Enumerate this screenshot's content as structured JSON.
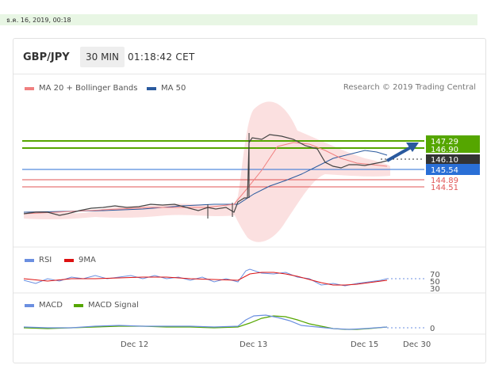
{
  "timestamp": "ธ.ค. 16, 2019, 00:18",
  "header": {
    "pair": "GBP/JPY",
    "timeframe": "30 MIN",
    "time": "01:18:42 CET"
  },
  "legend": {
    "ma20": "MA 20 + Bollinger Bands",
    "ma50": "MA 50",
    "credit": "Research © 2019 Trading Central",
    "rsi": "RSI",
    "ma9": "9MA",
    "macd": "MACD",
    "macd_signal": "MACD Signal"
  },
  "colors": {
    "resistance": "#55a600",
    "support": "#2a6fd6",
    "current": "#333333",
    "pivot_lines": "#e05555",
    "ma20": "#f08080",
    "ma50": "#2a5a9e",
    "rsi": "#6b8fe0",
    "ma9": "#dd1111",
    "macd": "#6b8fe0",
    "macd_signal": "#55a600"
  },
  "chart_data": {
    "type": "line",
    "title": "GBP/JPY",
    "x_ticks": [
      "Dec 12",
      "Dec 13",
      "Dec 15",
      "Dec 30"
    ],
    "price_levels": [
      {
        "label": "147.29",
        "kind": "resistance"
      },
      {
        "label": "146.90",
        "kind": "resistance"
      },
      {
        "label": "146.10",
        "kind": "current"
      },
      {
        "label": "145.54",
        "kind": "support"
      },
      {
        "label": "144.89",
        "kind": "pivot"
      },
      {
        "label": "144.51",
        "kind": "pivot"
      }
    ],
    "rsi_ticks": [
      "70",
      "50",
      "30"
    ],
    "macd_ticks": [
      "0"
    ]
  }
}
